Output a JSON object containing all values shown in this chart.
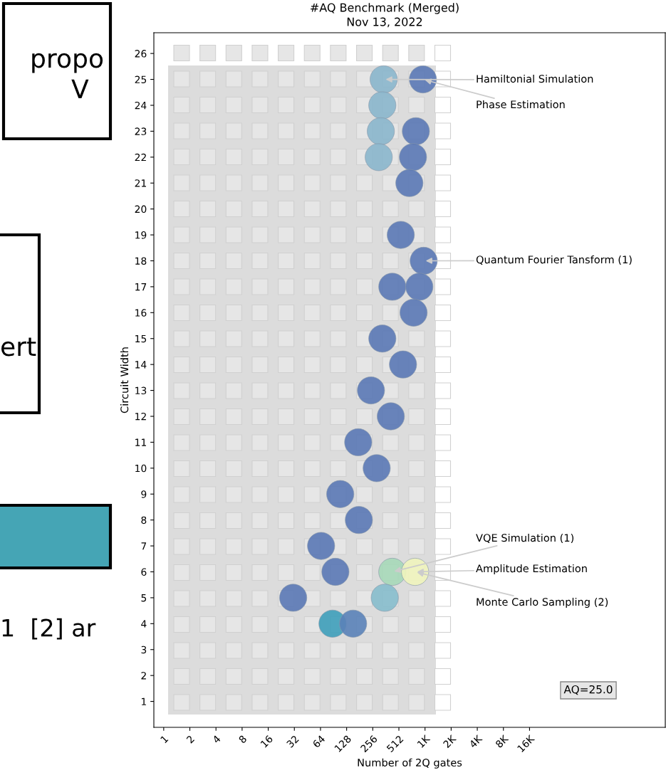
{
  "chart_data": {
    "type": "scatter",
    "title": "#AQ Benchmark (Merged)",
    "subtitle": "Nov 13, 2022",
    "xlabel": "Number of 2Q gates",
    "ylabel": "Circuit Width",
    "log": "x",
    "grid": false,
    "legend": false,
    "marker": "circle",
    "xlim": [
      0.77,
      600000
    ],
    "ylim": [
      0,
      26.8
    ],
    "xticks": [
      1,
      2,
      4,
      8,
      16,
      32,
      64,
      128,
      256,
      512,
      {
        "value": 1024,
        "label": "1K"
      },
      {
        "value": 2048,
        "label": "2K"
      },
      {
        "value": 4096,
        "label": "4K"
      },
      {
        "value": 8192,
        "label": "8K"
      },
      {
        "value": 16384,
        "label": "16K"
      }
    ],
    "yticks": [
      1,
      2,
      3,
      4,
      5,
      6,
      7,
      8,
      9,
      10,
      11,
      12,
      13,
      14,
      15,
      16,
      17,
      18,
      19,
      20,
      21,
      22,
      23,
      24,
      25,
      26
    ],
    "series": [
      {
        "x": [
          342,
          330,
          317,
          300
        ],
        "values": [
          25,
          24,
          23,
          22
        ],
        "color": "#8ab6cc"
      },
      {
        "x": [
          968,
          803,
          744,
          676,
          538,
          988,
          430,
          880,
          756,
          330,
          571,
          244,
          413,
          174,
          284,
          108,
          177,
          65,
          95,
          31
        ],
        "values": [
          25,
          23,
          22,
          21,
          19,
          18,
          17,
          17,
          16,
          15,
          14,
          13,
          12,
          11,
          10,
          9,
          8,
          7,
          6,
          5
        ],
        "color": "#5a78b5"
      },
      {
        "x": [
          430,
          787,
          352,
          88,
          152
        ],
        "values": [
          6,
          6,
          5,
          4,
          4
        ],
        "colors": [
          "#a6d8b8",
          "#f0f4bc",
          "#86bccc",
          "#3e9fba",
          "#5a82b8"
        ]
      }
    ],
    "annotations": [
      {
        "text": "Hamiltonial Simulation",
        "x": 342,
        "y": 25
      },
      {
        "text": "Phase Estimation",
        "x": 968,
        "y": 25
      },
      {
        "text": "Quantum Fourier Tansform (1)",
        "x": 988,
        "y": 18
      },
      {
        "text": "VQE Simulation (1)",
        "x": 430,
        "y": 6
      },
      {
        "text": "Amplitude Estimation",
        "x": 787,
        "y": 6
      },
      {
        "text": "Monte Carlo Sampling (2)",
        "x": 787,
        "y": 6
      },
      "AQ=25.0",
      "propo",
      "V",
      "ert",
      "1  [2] ar"
    ]
  }
}
